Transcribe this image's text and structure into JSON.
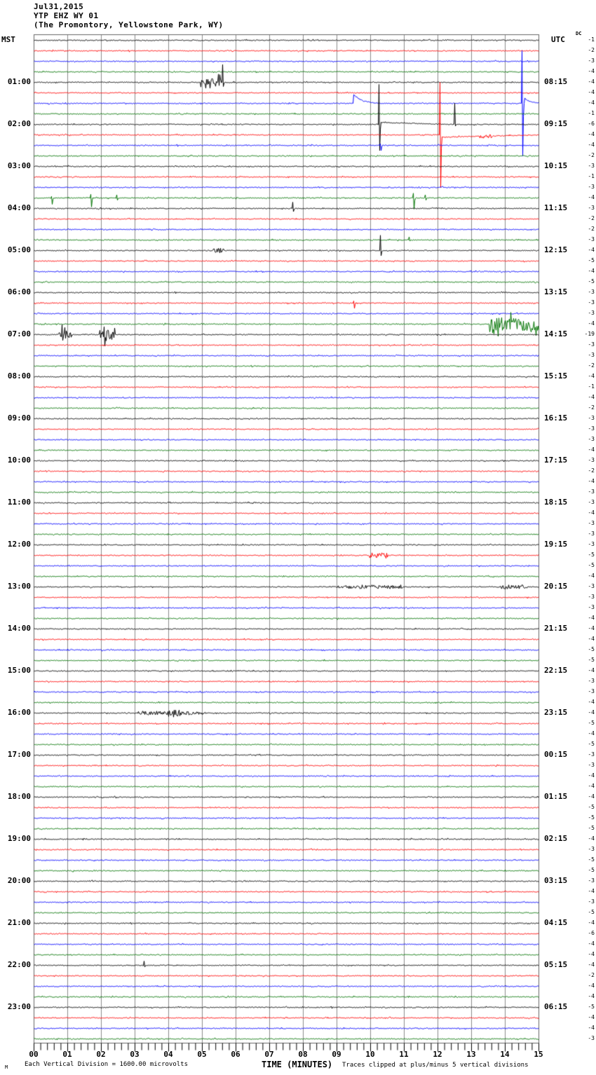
{
  "header": {
    "date": "Jul31,2015",
    "station": "YTP EHZ WY 01",
    "location": "(The Promontory, Yellowstone Park, WY)",
    "left_tz": "MST",
    "right_tz": "UTC",
    "dc_label": "DC"
  },
  "footer": {
    "left_mark": "M",
    "scale_note": "Each Vertical Division = 1600.00 microvolts",
    "axis_title": "TIME (MINUTES)",
    "clip_note": "Traces clipped at plus/minus 5 vertical divisions"
  },
  "chart_data": {
    "type": "line",
    "subtype": "helicorder-seismogram",
    "title": "YTP EHZ WY 01 (The Promontory, Yellowstone Park, WY) Jul31,2015",
    "xlabel": "TIME (MINUTES)",
    "x_range_minutes": [
      0,
      15
    ],
    "x_tick_labels": [
      "00",
      "01",
      "02",
      "03",
      "04",
      "05",
      "06",
      "07",
      "08",
      "09",
      "10",
      "11",
      "12",
      "13",
      "14",
      "15"
    ],
    "minor_ticks_per_minute": 5,
    "rows": 96,
    "minutes_per_row": 15,
    "row_color_cycle": [
      "#000000",
      "#ff0000",
      "#0000ff",
      "#007300"
    ],
    "grid_color": "#8c8c8c",
    "frame_color": "#666666",
    "left_time_labels": [
      "01:00",
      "02:00",
      "03:00",
      "04:00",
      "05:00",
      "06:00",
      "07:00",
      "08:00",
      "09:00",
      "10:00",
      "11:00",
      "12:00",
      "13:00",
      "14:00",
      "15:00",
      "16:00",
      "17:00",
      "18:00",
      "19:00",
      "20:00",
      "21:00",
      "22:00",
      "23:00"
    ],
    "right_time_labels": [
      "08:15",
      "09:15",
      "10:15",
      "11:15",
      "12:15",
      "13:15",
      "14:15",
      "15:15",
      "16:15",
      "17:15",
      "18:15",
      "19:15",
      "20:15",
      "21:15",
      "22:15",
      "23:15",
      "00:15",
      "01:15",
      "02:15",
      "03:15",
      "04:15",
      "05:15",
      "06:15"
    ],
    "label_every_n_rows": 4,
    "dc_offsets": [
      -1,
      -2,
      -3,
      -4,
      -4,
      -4,
      -4,
      -1,
      -6,
      -4,
      -4,
      -2,
      -3,
      -1,
      -3,
      -4,
      -3,
      -2,
      -2,
      -3,
      -4,
      -5,
      -4,
      -5,
      -3,
      -3,
      -3,
      -4,
      -19,
      -3,
      -3,
      -2,
      -4,
      -1,
      -4,
      -2,
      -3,
      -3,
      -3,
      -4,
      -3,
      -2,
      -4,
      -3,
      -3,
      -4,
      -3,
      -3,
      -3,
      -5,
      -5,
      -4,
      -3,
      -3,
      -3,
      -4,
      -4,
      -4,
      -5,
      -5,
      -4,
      -3,
      -3,
      -4,
      -4,
      -5,
      -4,
      -5,
      -3,
      -3,
      -4,
      -4,
      -4,
      -5,
      -5,
      -5,
      -4,
      -3,
      -5,
      -5,
      -3,
      -4,
      -3,
      -5,
      -4,
      -6,
      -4,
      -4,
      -4,
      -2,
      -4,
      -4,
      -5,
      -4,
      -4,
      -3
    ],
    "clip_divisions": 5,
    "microvolts_per_division": 1600.0,
    "events": [
      {
        "row": 4,
        "kind": "burst",
        "t0": 4.95,
        "t1": 5.55,
        "amp": 0.45
      },
      {
        "row": 4,
        "kind": "spike",
        "t": 5.6,
        "up": 1.7,
        "down": 0.4
      },
      {
        "row": 6,
        "kind": "decay_pulse",
        "t": 9.5,
        "up": 0.85,
        "dur": 0.7
      },
      {
        "row": 6,
        "kind": "spike",
        "t": 14.5,
        "up": 5,
        "down": 5
      },
      {
        "row": 6,
        "kind": "decay_pulse",
        "t": 14.58,
        "up": 0.5,
        "dur": 0.45
      },
      {
        "row": 8,
        "kind": "spike",
        "t": 10.25,
        "up": 3.8,
        "down": 2.5
      },
      {
        "row": 8,
        "kind": "offset",
        "t0": 10.3,
        "t1": 12.4,
        "amp": -0.18
      },
      {
        "row": 8,
        "kind": "spike",
        "t": 12.5,
        "up": 2.0,
        "down": 0.15
      },
      {
        "row": 9,
        "kind": "spike",
        "t": 12.07,
        "up": 5,
        "down": 5
      },
      {
        "row": 9,
        "kind": "offset",
        "t0": 12.12,
        "t1": 15,
        "amp": 0.22
      },
      {
        "row": 9,
        "kind": "fuzz",
        "t0": 13.25,
        "t1": 13.6,
        "amp": 0.18
      },
      {
        "row": 10,
        "kind": "spike",
        "t": 10.3,
        "up": 0.15,
        "down": 0.5
      },
      {
        "row": 15,
        "kind": "spike",
        "t": 0.52,
        "up": 0.15,
        "down": 0.6
      },
      {
        "row": 15,
        "kind": "spike",
        "t": 1.68,
        "up": 0.35,
        "down": 0.85
      },
      {
        "row": 15,
        "kind": "spike",
        "t": 2.45,
        "up": 0.3,
        "down": 0.2
      },
      {
        "row": 15,
        "kind": "spike",
        "t": 11.28,
        "up": 0.45,
        "down": 1.05
      },
      {
        "row": 15,
        "kind": "spike",
        "t": 11.62,
        "up": 0.3,
        "down": 0.2
      },
      {
        "row": 16,
        "kind": "spike",
        "t": 7.68,
        "up": 0.6,
        "down": 0.3
      },
      {
        "row": 19,
        "kind": "spike",
        "t": 11.15,
        "up": 0.3,
        "down": 0.1
      },
      {
        "row": 20,
        "kind": "fuzz",
        "t0": 5.3,
        "t1": 5.65,
        "amp": 0.2
      },
      {
        "row": 20,
        "kind": "spike",
        "t": 10.3,
        "up": 1.45,
        "down": 0.5
      },
      {
        "row": 25,
        "kind": "spike",
        "t": 9.5,
        "up": 0.2,
        "down": 0.5
      },
      {
        "row": 27,
        "kind": "burst",
        "t0": 13.55,
        "t1": 15.0,
        "amp": 0.65
      },
      {
        "row": 28,
        "kind": "burst",
        "t0": 0.72,
        "t1": 1.1,
        "amp": 0.4
      },
      {
        "row": 28,
        "kind": "spike",
        "t": 0.84,
        "up": 0.95,
        "down": 0.55
      },
      {
        "row": 28,
        "kind": "burst",
        "t0": 1.95,
        "t1": 2.4,
        "amp": 0.45
      },
      {
        "row": 28,
        "kind": "spike",
        "t": 2.08,
        "up": 0.75,
        "down": 1.1
      },
      {
        "row": 49,
        "kind": "fuzz",
        "t0": 9.95,
        "t1": 10.5,
        "amp": 0.28
      },
      {
        "row": 52,
        "kind": "fuzz",
        "t0": 9.05,
        "t1": 10.95,
        "amp": 0.18
      },
      {
        "row": 52,
        "kind": "fuzz",
        "t0": 13.85,
        "t1": 14.65,
        "amp": 0.22
      },
      {
        "row": 64,
        "kind": "fuzz",
        "t0": 3.0,
        "t1": 5.05,
        "amp": 0.18
      },
      {
        "row": 64,
        "kind": "fuzz",
        "t0": 4.0,
        "t1": 4.35,
        "amp": 0.3
      },
      {
        "row": 88,
        "kind": "spike",
        "t": 3.28,
        "up": 0.4,
        "down": 0.15
      }
    ]
  }
}
